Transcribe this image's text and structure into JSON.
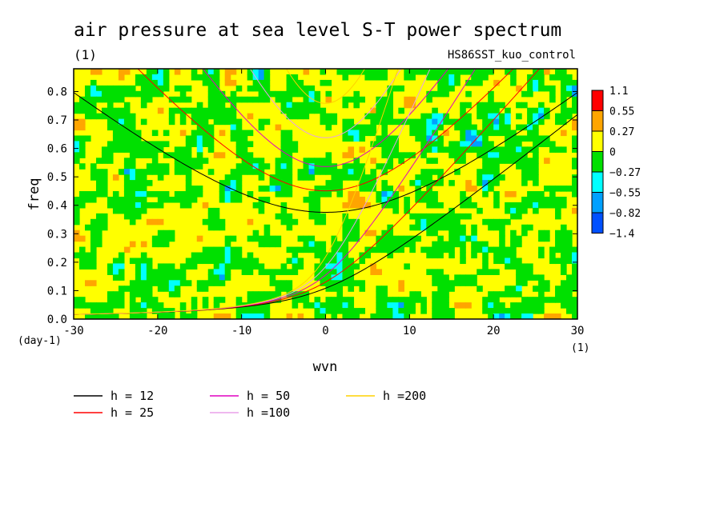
{
  "chart_data": {
    "type": "heatmap",
    "title": "air pressure at sea level S-T power spectrum",
    "subtitle_left": "(1)",
    "subtitle_right": "HS86SST_kuo_control",
    "xlabel": "wvn",
    "ylabel": "freq",
    "x_unit": "(1)",
    "y_unit": "(day-1)",
    "xlim": [
      -30,
      30
    ],
    "ylim": [
      0,
      0.88
    ],
    "xticks": [
      -30,
      -20,
      -10,
      0,
      10,
      20,
      30
    ],
    "yticks": [
      0.0,
      0.1,
      0.2,
      0.3,
      0.4,
      0.5,
      0.6,
      0.7,
      0.8
    ],
    "ytick_labels": [
      "0.0",
      "0.1",
      "0.2",
      "0.3",
      "0.4",
      "0.5",
      "0.6",
      "0.7",
      "0.8"
    ],
    "colorbar": {
      "levels": [
        "1.1",
        "0.55",
        "0.27",
        "0",
        "−0.27",
        "−0.55",
        "−0.82",
        "−1.4"
      ],
      "colors": [
        "#ff0000",
        "#ffa500",
        "#ffff00",
        "#00e000",
        "#00ffff",
        "#00a0ff",
        "#0050ff"
      ]
    },
    "dispersion_curves": [
      {
        "name": "h = 12",
        "h": 12,
        "color": "#000000"
      },
      {
        "name": "h = 25",
        "h": 25,
        "color": "#ff0000"
      },
      {
        "name": "h = 50",
        "h": 50,
        "color": "#e000c0"
      },
      {
        "name": "h =100",
        "h": 100,
        "color": "#e8a0e8"
      },
      {
        "name": "h =200",
        "h": 200,
        "color": "#ffd000"
      }
    ]
  }
}
